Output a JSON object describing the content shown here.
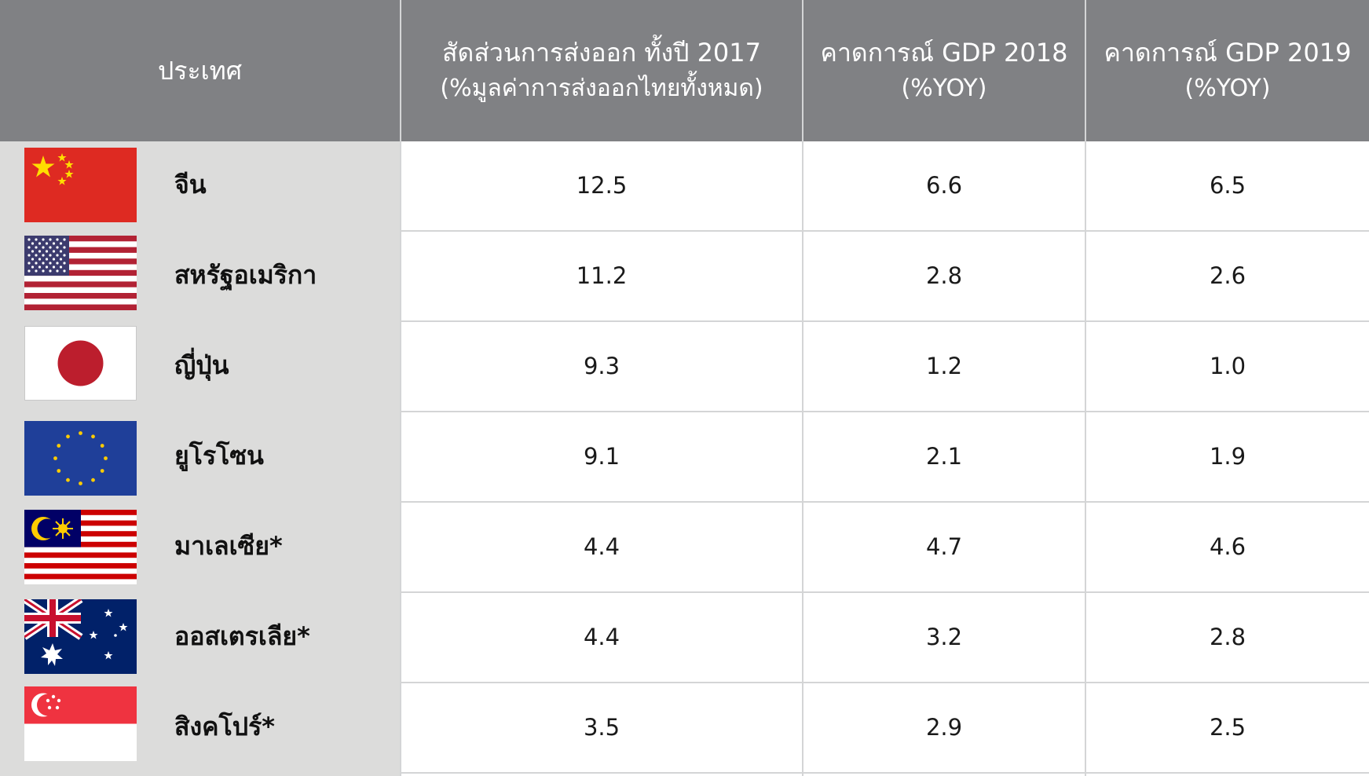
{
  "header": {
    "country": "ประเทศ",
    "export_share_line1": "สัดส่วนการส่งออก ทั้งปี 2017",
    "export_share_line2": "(%มูลค่าการส่งออกไทยทั้งหมด)",
    "gdp2018_line1": "คาดการณ์ GDP 2018",
    "gdp2018_line2": "(%YOY)",
    "gdp2019_line1": "คาดการณ์ GDP 2019",
    "gdp2019_line2": "(%YOY)"
  },
  "rows": [
    {
      "flag": "china-flag-icon",
      "country": "จีน",
      "export_share": "12.5",
      "gdp2018": "6.6",
      "gdp2019": "6.5"
    },
    {
      "flag": "usa-flag-icon",
      "country": "สหรัฐอเมริกา",
      "export_share": "11.2",
      "gdp2018": "2.8",
      "gdp2019": "2.6"
    },
    {
      "flag": "japan-flag-icon",
      "country": "ญี่ปุ่น",
      "export_share": "9.3",
      "gdp2018": "1.2",
      "gdp2019": "1.0"
    },
    {
      "flag": "eu-flag-icon",
      "country": "ยูโรโซน",
      "export_share": "9.1",
      "gdp2018": "2.1",
      "gdp2019": "1.9"
    },
    {
      "flag": "malaysia-flag-icon",
      "country": "มาเลเซีย*",
      "export_share": "4.4",
      "gdp2018": "4.7",
      "gdp2019": "4.6"
    },
    {
      "flag": "australia-flag-icon",
      "country": "ออสเตรเลีย*",
      "export_share": "4.4",
      "gdp2018": "3.2",
      "gdp2019": "2.8"
    },
    {
      "flag": "singapore-flag-icon",
      "country": "สิงคโปร์*",
      "export_share": "3.5",
      "gdp2018": "2.9",
      "gdp2019": "2.5"
    }
  ],
  "colors": {
    "header_bg": "#808184",
    "left_panel_bg": "#dcdcdb",
    "grid_line": "#d4d5d6"
  }
}
